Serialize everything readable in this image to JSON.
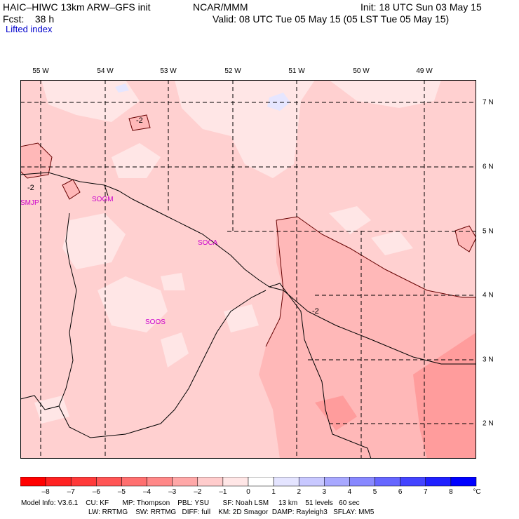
{
  "header": {
    "model_title": "HAIC–HIWC 13km ARW–GFS init",
    "org": "NCAR/MMM",
    "fcst": "Fcst:    38 h",
    "init": "Init: 18 UTC Sun 03 May 15",
    "valid": "Valid: 08 UTC Tue 05 May 15 (05 LST Tue 05 May 15)",
    "field": "Lifted index"
  },
  "axes": {
    "longitudes": [
      "55 W",
      "54 W",
      "53 W",
      "52 W",
      "51 W",
      "50 W",
      "49 W"
    ],
    "latitudes": [
      "7 N",
      "6 N",
      "5 N",
      "4 N",
      "3 N",
      "2 N"
    ]
  },
  "stations": [
    {
      "id": "SMJP"
    },
    {
      "id": "SOGM"
    },
    {
      "id": "SOCA"
    },
    {
      "id": "SOOS"
    }
  ],
  "contour_labels": [
    "-2",
    "-2",
    "-2"
  ],
  "colorbar": {
    "ticks": [
      "–8",
      "–7",
      "–6",
      "–5",
      "–4",
      "–3",
      "–2",
      "–1",
      "0",
      "1",
      "2",
      "3",
      "4",
      "5",
      "6",
      "7",
      "8"
    ],
    "unit": "°C",
    "colors": [
      "#ff0000",
      "#ff2222",
      "#ff3a3a",
      "#ff5555",
      "#ff7070",
      "#ff8888",
      "#ffa8a8",
      "#ffcccc",
      "#ffe6e6",
      "#ffffff",
      "#e4e4ff",
      "#c8c8ff",
      "#a8a8ff",
      "#8888ff",
      "#6666ff",
      "#4444ff",
      "#2020ff",
      "#0000ff"
    ]
  },
  "footer": {
    "line1": "Model Info: V3.6.1    CU: KF       MP: Thompson    PBL: YSU       SF: Noah LSM     13 km    51 levels   60 sec",
    "line2": "LW: RRTMG    SW: RRTMG   DIFF: full    KM: 2D Smagor  DAMP: Rayleigh3   SFLAY: MM5"
  },
  "fill_colors": {
    "base": "#ffd0d0",
    "light": "#ffe6e6",
    "mid": "#ffb8b8",
    "dark": "#ff9c9c",
    "blue": "#e6e6ff"
  }
}
